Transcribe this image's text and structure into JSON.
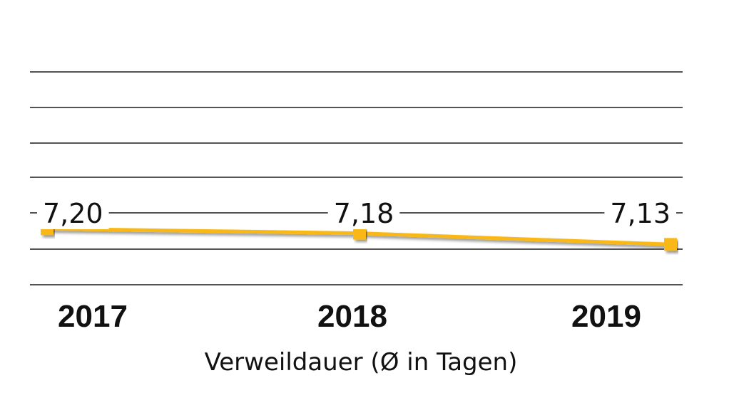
{
  "chart_data": {
    "type": "line",
    "title": "Verweildauer (Ø in Tagen)",
    "xlabel": "",
    "ylabel": "",
    "categories": [
      "2017",
      "2018",
      "2019"
    ],
    "series": [
      {
        "name": "Verweildauer",
        "values": [
          7.2,
          7.18,
          7.13
        ],
        "labels": [
          "7,20",
          "7,18",
          "7,13"
        ],
        "color": "#f9b818"
      }
    ],
    "ylim": [
      6.95,
      7.9
    ],
    "grid": true,
    "legend": "none"
  }
}
